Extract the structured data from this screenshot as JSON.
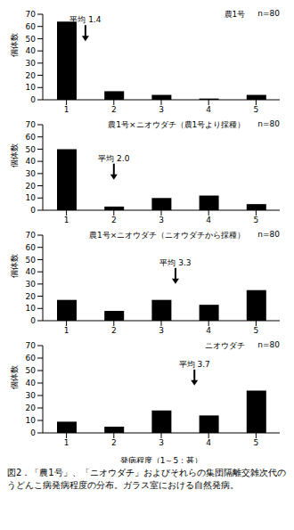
{
  "chart_data": [
    {
      "type": "bar",
      "title": "農1号",
      "subtitle": "n=80",
      "x": [
        1,
        2,
        3,
        4,
        5
      ],
      "values": [
        64,
        7,
        4,
        1,
        4
      ],
      "color": "#000000",
      "xlim": [
        0.5,
        5.5
      ],
      "xticks": [
        1,
        2,
        3,
        4,
        5
      ],
      "ylim": [
        0,
        70
      ],
      "yticks": [
        0,
        10,
        20,
        30,
        40,
        50,
        60,
        70
      ],
      "y_label": "個体数",
      "annotations": [
        {
          "text": "平均 1.4",
          "x": 1.4,
          "y": 48
        }
      ]
    },
    {
      "type": "bar",
      "title": "農1号×ニオウダチ（農1号より採種）",
      "subtitle": "n=80",
      "x": [
        1,
        2,
        3,
        4,
        5
      ],
      "values": [
        50,
        3,
        10,
        12,
        5
      ],
      "color": "#000000",
      "xlim": [
        0.5,
        5.5
      ],
      "xticks": [
        1,
        2,
        3,
        4,
        5
      ],
      "ylim": [
        0,
        70
      ],
      "yticks": [
        0,
        10,
        20,
        30,
        40,
        50,
        60,
        70
      ],
      "y_label": "個体数",
      "annotations": [
        {
          "text": "平均 2.0",
          "x": 2.0,
          "y": 25
        }
      ]
    },
    {
      "type": "bar",
      "title": "農1号×ニオウダチ（ニオウダチから採種）",
      "subtitle": "n=80",
      "x": [
        1,
        2,
        3,
        4,
        5
      ],
      "values": [
        17,
        8,
        17,
        13,
        25
      ],
      "color": "#000000",
      "xlim": [
        0.5,
        5.5
      ],
      "xticks": [
        1,
        2,
        3,
        4,
        5
      ],
      "ylim": [
        0,
        70
      ],
      "yticks": [
        0,
        10,
        20,
        30,
        40,
        50,
        60,
        70
      ],
      "y_label": "個体数",
      "annotations": [
        {
          "text": "平均 3.3",
          "x": 3.3,
          "y": 30
        }
      ]
    },
    {
      "type": "bar",
      "title": "ニオウダチ",
      "subtitle": "n=80",
      "x": [
        1,
        2,
        3,
        4,
        5
      ],
      "values": [
        9,
        5,
        18,
        14,
        34
      ],
      "color": "#000000",
      "xlim": [
        0.5,
        5.5
      ],
      "xticks": [
        1,
        2,
        3,
        4,
        5
      ],
      "ylim": [
        0,
        70
      ],
      "yticks": [
        0,
        10,
        20,
        30,
        40,
        50,
        60,
        70
      ],
      "y_label": "個体数",
      "x_label": "発病程度（1～5：甚）",
      "annotations": [
        {
          "text": "平均 3.7",
          "x": 3.7,
          "y": 38
        }
      ]
    }
  ],
  "caption": "図2．「農1号」、「ニオウダチ」およびそれらの集団隔離交雑次代のうどんこ病発病程度の分布。ガラス室における自然発病。"
}
